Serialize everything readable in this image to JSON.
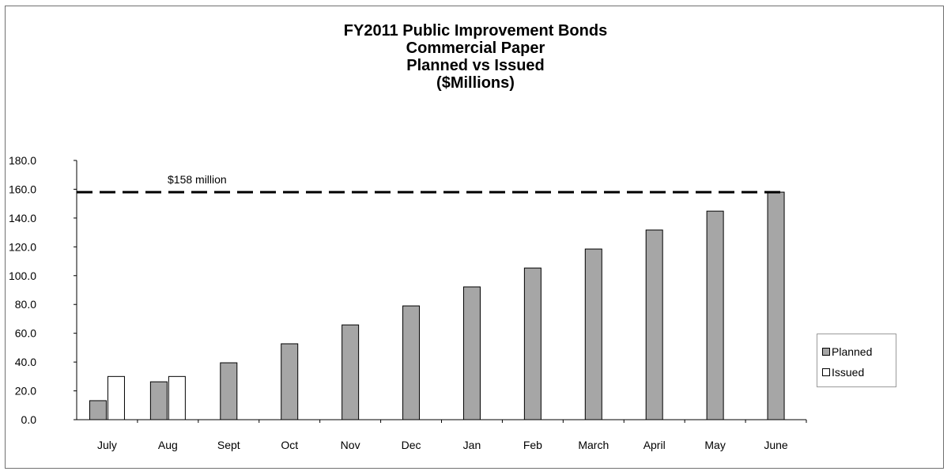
{
  "title_lines": [
    "FY2011 Public Improvement Bonds",
    "Commercial Paper",
    "Planned vs Issued",
    "($Millions)"
  ],
  "colors": {
    "planned": "#a6a6a6",
    "issued": "#ffffff",
    "line": "#000000"
  },
  "legend": {
    "planned_label": "Planned",
    "issued_label": "Issued",
    "placement": "right"
  },
  "chart_data": {
    "type": "bar",
    "title": "FY2011 Public Improvement Bonds Commercial Paper Planned vs Issued ($Millions)",
    "categories": [
      "July",
      "Aug",
      "Sept",
      "Oct",
      "Nov",
      "Dec",
      "Jan",
      "Feb",
      "March",
      "April",
      "May",
      "June"
    ],
    "series": [
      {
        "name": "Planned",
        "values": [
          13.2,
          26.3,
          39.5,
          52.7,
          65.8,
          79.0,
          92.2,
          105.3,
          118.5,
          131.7,
          144.8,
          158.0
        ]
      },
      {
        "name": "Issued",
        "values": [
          30.0,
          30.0,
          null,
          null,
          null,
          null,
          null,
          null,
          null,
          null,
          null,
          null
        ]
      }
    ],
    "ylim": [
      0,
      180
    ],
    "yticks": [
      "0.0",
      "20.0",
      "40.0",
      "60.0",
      "80.0",
      "100.0",
      "120.0",
      "140.0",
      "160.0",
      "180.0"
    ],
    "grid": false,
    "reference_line": {
      "value": 158,
      "label": "$158 million",
      "style": "dashed"
    }
  }
}
